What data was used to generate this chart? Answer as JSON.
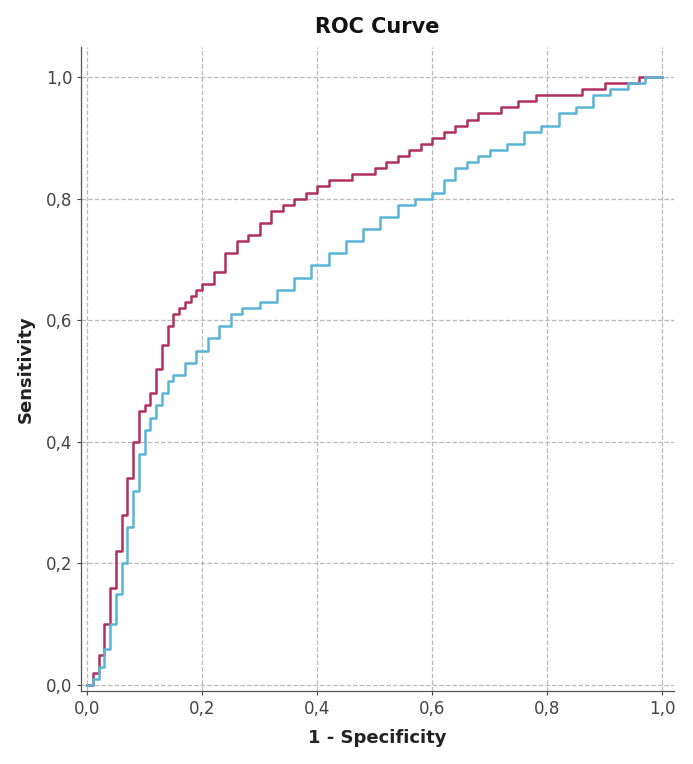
{
  "title": "ROC Curve",
  "xlabel": "1 - Specificity",
  "ylabel": "Sensitivity",
  "xlim": [
    -0.01,
    1.02
  ],
  "ylim": [
    -0.01,
    1.05
  ],
  "xticks": [
    0.0,
    0.2,
    0.4,
    0.6,
    0.8,
    1.0
  ],
  "yticks": [
    0.0,
    0.2,
    0.4,
    0.6,
    0.8,
    1.0
  ],
  "curve1_color": "#b03060",
  "curve2_color": "#5ab4d6",
  "background_color": "#ffffff",
  "grid_color": "#bbbbbb",
  "title_fontsize": 15,
  "label_fontsize": 13,
  "tick_fontsize": 12,
  "linewidth": 1.8,
  "curve1_x": [
    0.0,
    0.01,
    0.02,
    0.03,
    0.04,
    0.05,
    0.06,
    0.07,
    0.08,
    0.09,
    0.1,
    0.11,
    0.12,
    0.13,
    0.14,
    0.15,
    0.16,
    0.17,
    0.18,
    0.19,
    0.2,
    0.22,
    0.24,
    0.26,
    0.28,
    0.3,
    0.32,
    0.34,
    0.36,
    0.38,
    0.4,
    0.42,
    0.44,
    0.46,
    0.48,
    0.5,
    0.52,
    0.54,
    0.56,
    0.58,
    0.6,
    0.62,
    0.64,
    0.66,
    0.68,
    0.7,
    0.72,
    0.75,
    0.78,
    0.82,
    0.86,
    0.9,
    0.93,
    0.96,
    1.0
  ],
  "curve1_y": [
    0.0,
    0.02,
    0.05,
    0.1,
    0.16,
    0.22,
    0.28,
    0.34,
    0.4,
    0.45,
    0.46,
    0.48,
    0.52,
    0.56,
    0.59,
    0.61,
    0.62,
    0.63,
    0.64,
    0.65,
    0.66,
    0.68,
    0.71,
    0.73,
    0.74,
    0.76,
    0.78,
    0.79,
    0.8,
    0.81,
    0.82,
    0.83,
    0.83,
    0.84,
    0.84,
    0.85,
    0.86,
    0.87,
    0.88,
    0.89,
    0.9,
    0.91,
    0.92,
    0.93,
    0.94,
    0.94,
    0.95,
    0.96,
    0.97,
    0.97,
    0.98,
    0.99,
    0.99,
    1.0,
    1.0
  ],
  "curve2_x": [
    0.0,
    0.01,
    0.02,
    0.03,
    0.04,
    0.05,
    0.06,
    0.07,
    0.08,
    0.09,
    0.1,
    0.11,
    0.12,
    0.13,
    0.14,
    0.15,
    0.17,
    0.19,
    0.21,
    0.23,
    0.25,
    0.27,
    0.3,
    0.33,
    0.36,
    0.39,
    0.42,
    0.45,
    0.48,
    0.51,
    0.54,
    0.57,
    0.6,
    0.62,
    0.64,
    0.66,
    0.68,
    0.7,
    0.73,
    0.76,
    0.79,
    0.82,
    0.85,
    0.88,
    0.91,
    0.94,
    0.97,
    1.0
  ],
  "curve2_y": [
    0.0,
    0.01,
    0.03,
    0.06,
    0.1,
    0.15,
    0.2,
    0.26,
    0.32,
    0.38,
    0.42,
    0.44,
    0.46,
    0.48,
    0.5,
    0.51,
    0.53,
    0.55,
    0.57,
    0.59,
    0.61,
    0.62,
    0.63,
    0.65,
    0.67,
    0.69,
    0.71,
    0.73,
    0.75,
    0.77,
    0.79,
    0.8,
    0.81,
    0.83,
    0.85,
    0.86,
    0.87,
    0.88,
    0.89,
    0.91,
    0.92,
    0.94,
    0.95,
    0.97,
    0.98,
    0.99,
    1.0,
    1.0
  ]
}
